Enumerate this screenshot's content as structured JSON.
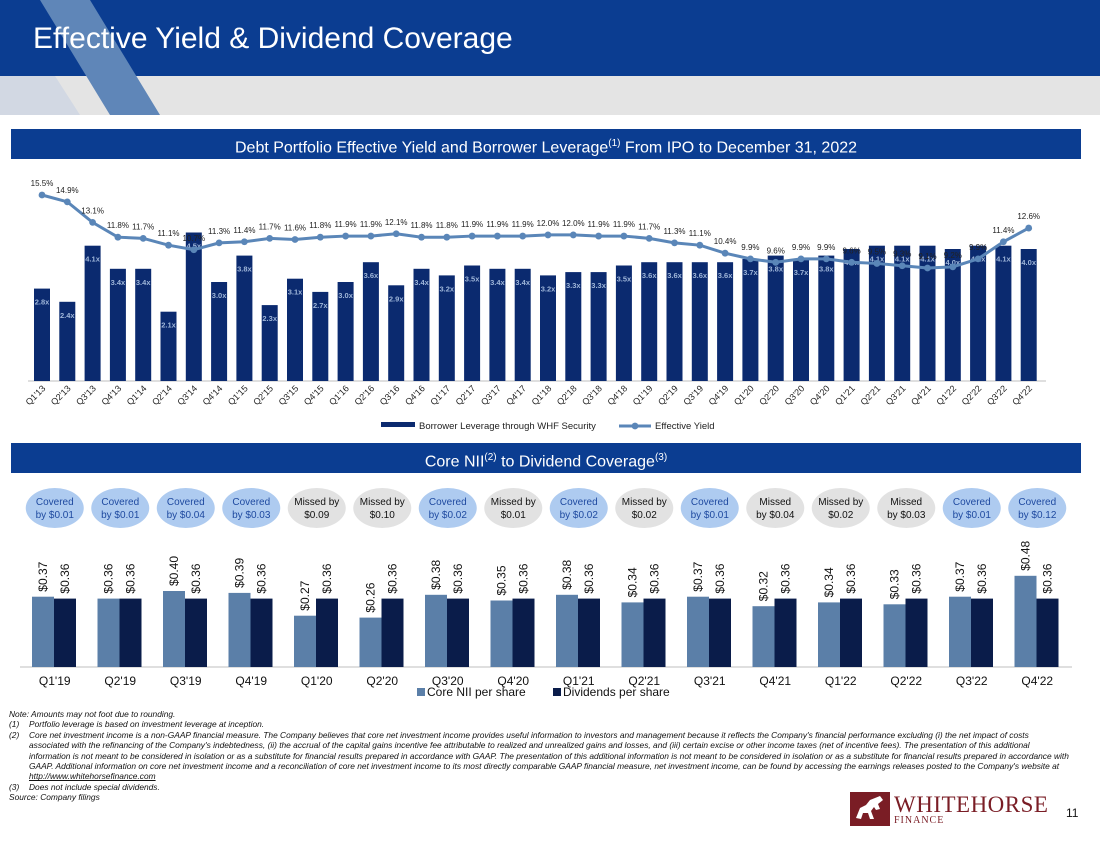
{
  "page": {
    "title": "Effective Yield & Dividend Coverage",
    "page_number": "11",
    "logo_name": "WHITEHORSE",
    "logo_sub": "FINANCE"
  },
  "colors": {
    "navy": "#0b3d91",
    "bar_navy": "#0b2a6f",
    "yield_line": "#5a86b8",
    "core_nii": "#5b7fa8",
    "dividend": "#0a1c4a",
    "covered_fill": "#aecbf0",
    "covered_text": "#1f4aa0",
    "missed_fill": "#e2e2e2"
  },
  "banner1": {
    "text": "Debt Portfolio Effective Yield and Borrower Leverage",
    "sup": "(1)",
    "text_after": " From IPO to December 31, 2022"
  },
  "banner2": {
    "text": "Core NII",
    "sup": "(2)",
    "text_after": " to Dividend Coverage",
    "sup2": "(3)"
  },
  "chart_data": [
    {
      "type": "bar",
      "title": "Debt Portfolio Effective Yield and Borrower Leverage From IPO to December 31, 2022",
      "categories": [
        "Q1'13",
        "Q2'13",
        "Q3'13",
        "Q4'13",
        "Q1'14",
        "Q2'14",
        "Q3'14",
        "Q4'14",
        "Q1'15",
        "Q2'15",
        "Q3'15",
        "Q4'15",
        "Q1'16",
        "Q2'16",
        "Q3'16",
        "Q4'16",
        "Q1'17",
        "Q2'17",
        "Q3'17",
        "Q4'17",
        "Q1'18",
        "Q2'18",
        "Q3'18",
        "Q4'18",
        "Q1'19",
        "Q2'19",
        "Q3'19",
        "Q4'19",
        "Q1'20",
        "Q2'20",
        "Q3'20",
        "Q4'20",
        "Q1'21",
        "Q2'21",
        "Q3'21",
        "Q4'21",
        "Q1'22",
        "Q2'22",
        "Q3'22",
        "Q4'22"
      ],
      "series": [
        {
          "name": "Borrower Leverage through WHF Security",
          "kind": "bar",
          "values": [
            2.8,
            2.4,
            4.1,
            3.4,
            3.4,
            2.1,
            4.5,
            3.0,
            3.8,
            2.3,
            3.1,
            2.7,
            3.0,
            3.6,
            2.9,
            3.4,
            3.2,
            3.5,
            3.4,
            3.4,
            3.2,
            3.3,
            3.3,
            3.5,
            3.6,
            3.6,
            3.6,
            3.6,
            3.7,
            3.8,
            3.7,
            3.8,
            4.0,
            4.1,
            4.1,
            4.1,
            4.0,
            4.1,
            4.1,
            4.0
          ],
          "labels": [
            "2.8x",
            "2.4x",
            "4.1x",
            "3.4x",
            "3.4x",
            "2.1x",
            "4.5x",
            "3.0x",
            "3.8x",
            "2.3x",
            "3.1x",
            "2.7x",
            "3.0x",
            "3.6x",
            "2.9x",
            "3.4x",
            "3.2x",
            "3.5x",
            "3.4x",
            "3.4x",
            "3.2x",
            "3.3x",
            "3.3x",
            "3.5x",
            "3.6x",
            "3.6x",
            "3.6x",
            "3.6x",
            "3.7x",
            "3.8x",
            "3.7x",
            "3.8x",
            "4.0x",
            "4.1x",
            "4.1x",
            "4.1x",
            "4.0x",
            "4.1x",
            "4.1x",
            "4.0x"
          ]
        },
        {
          "name": "Effective Yield",
          "kind": "line",
          "values": [
            15.5,
            14.9,
            13.1,
            11.8,
            11.7,
            11.1,
            10.7,
            11.3,
            11.4,
            11.7,
            11.6,
            11.8,
            11.9,
            11.9,
            12.1,
            11.8,
            11.8,
            11.9,
            11.9,
            11.9,
            12.0,
            12.0,
            11.9,
            11.9,
            11.7,
            11.3,
            11.1,
            10.4,
            9.9,
            9.6,
            9.9,
            9.9,
            9.6,
            9.5,
            9.3,
            9.1,
            9.2,
            9.9,
            11.4,
            12.6
          ],
          "labels": [
            "15.5%",
            "14.9%",
            "13.1%",
            "11.8%",
            "11.7%",
            "11.1%",
            "10.7%",
            "11.3%",
            "11.4%",
            "11.7%",
            "11.6%",
            "11.8%",
            "11.9%",
            "11.9%",
            "12.1%",
            "11.8%",
            "11.8%",
            "11.9%",
            "11.9%",
            "11.9%",
            "12.0%",
            "12.0%",
            "11.9%",
            "11.9%",
            "11.7%",
            "11.3%",
            "11.1%",
            "10.4%",
            "9.9%",
            "9.6%",
            "9.9%",
            "9.9%",
            "9.6%",
            "9.5%",
            "9.3%",
            "9.1%",
            "9.2%",
            "9.9%",
            "11.4%",
            "12.6%"
          ]
        }
      ],
      "legend": [
        "Borrower Leverage through WHF Security",
        "Effective Yield"
      ],
      "legend_position": "bottom"
    },
    {
      "type": "bar",
      "title": "Core NII to Dividend Coverage",
      "categories": [
        "Q1'19",
        "Q2'19",
        "Q3'19",
        "Q4'19",
        "Q1'20",
        "Q2'20",
        "Q3'20",
        "Q4'20",
        "Q1'21",
        "Q2'21",
        "Q3'21",
        "Q4'21",
        "Q1'22",
        "Q2'22",
        "Q3'22",
        "Q4'22"
      ],
      "series": [
        {
          "name": "Core NII per share",
          "values": [
            0.37,
            0.36,
            0.4,
            0.39,
            0.27,
            0.26,
            0.38,
            0.35,
            0.38,
            0.34,
            0.37,
            0.32,
            0.34,
            0.33,
            0.37,
            0.48
          ],
          "labels": [
            "$0.37",
            "$0.36",
            "$0.40",
            "$0.39",
            "$0.27",
            "$0.26",
            "$0.38",
            "$0.35",
            "$0.38",
            "$0.34",
            "$0.37",
            "$0.32",
            "$0.34",
            "$0.33",
            "$0.37",
            "$0.48"
          ]
        },
        {
          "name": "Dividends per share",
          "values": [
            0.36,
            0.36,
            0.36,
            0.36,
            0.36,
            0.36,
            0.36,
            0.36,
            0.36,
            0.36,
            0.36,
            0.36,
            0.36,
            0.36,
            0.36,
            0.36
          ],
          "labels": [
            "$0.36",
            "$0.36",
            "$0.36",
            "$0.36",
            "$0.36",
            "$0.36",
            "$0.36",
            "$0.36",
            "$0.36",
            "$0.36",
            "$0.36",
            "$0.36",
            "$0.36",
            "$0.36",
            "$0.36",
            "$0.36"
          ]
        }
      ],
      "coverage": [
        {
          "status": "covered",
          "line1": "Covered",
          "line2": "by $0.01"
        },
        {
          "status": "covered",
          "line1": "Covered",
          "line2": "by $0.01"
        },
        {
          "status": "covered",
          "line1": "Covered",
          "line2": "by $0.04"
        },
        {
          "status": "covered",
          "line1": "Covered",
          "line2": "by $0.03"
        },
        {
          "status": "missed",
          "line1": "Missed by",
          "line2": "$0.09"
        },
        {
          "status": "missed",
          "line1": "Missed by",
          "line2": "$0.10"
        },
        {
          "status": "covered",
          "line1": "Covered",
          "line2": "by $0.02"
        },
        {
          "status": "missed",
          "line1": "Missed by",
          "line2": "$0.01"
        },
        {
          "status": "covered",
          "line1": "Covered",
          "line2": "by $0.02"
        },
        {
          "status": "missed",
          "line1": "Missed by",
          "line2": "$0.02"
        },
        {
          "status": "covered",
          "line1": "Covered",
          "line2": "by $0.01"
        },
        {
          "status": "missed",
          "line1": "Missed",
          "line2": "by $0.04"
        },
        {
          "status": "missed",
          "line1": "Missed by",
          "line2": "$0.02"
        },
        {
          "status": "missed",
          "line1": "Missed",
          "line2": "by $0.03"
        },
        {
          "status": "covered",
          "line1": "Covered",
          "line2": "by $0.01"
        },
        {
          "status": "covered",
          "line1": "Covered",
          "line2": "by $0.12"
        }
      ],
      "legend": [
        "Core NII per share",
        "Dividends per share"
      ],
      "legend_position": "bottom"
    }
  ],
  "notes": {
    "note": "Note: Amounts may not foot due to rounding.",
    "items": [
      {
        "num": "(1)",
        "text": "Portfolio leverage is based on investment leverage at inception."
      },
      {
        "num": "(2)",
        "text": "Core net investment income is a non-GAAP financial measure. The Company believes that core net investment income provides useful information to investors and management because it reflects the Company's financial performance excluding (i) the net impact of costs associated with the refinancing of the Company's indebtedness, (ii) the accrual of the capital gains incentive fee attributable to realized and unrealized gains and losses, and (iii) certain excise or other income taxes (net of incentive fees). The presentation of this additional information is not meant to be considered in isolation or as a substitute for financial results prepared in accordance with GAAP. The presentation of this additional information is not meant to be considered in isolation or as a substitute for financial results prepared in accordance with GAAP. Additional information on core net investment income and a reconciliation of core net investment income to its most directly comparable GAAP financial measure, net investment income, can be found by accessing the earnings releases posted to the Company's website at",
        "link": "http://www.whitehorsefinance.com"
      },
      {
        "num": "(3)",
        "text": "Does not include special dividends."
      }
    ],
    "source": "Source: Company filings"
  }
}
